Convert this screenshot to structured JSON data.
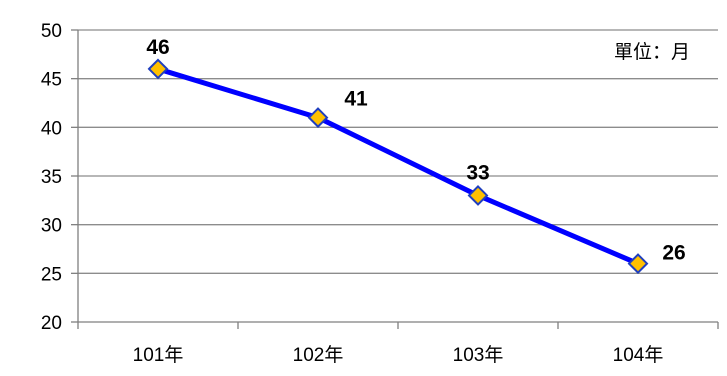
{
  "chart_data": {
    "type": "line",
    "categories": [
      "101年",
      "102年",
      "103年",
      "104年"
    ],
    "series": [
      {
        "values": [
          46,
          41,
          33,
          26
        ]
      }
    ],
    "data_labels": [
      "46",
      "41",
      "33",
      "26"
    ],
    "y_ticks": [
      "20",
      "25",
      "30",
      "35",
      "40",
      "45",
      "50"
    ],
    "ylim": [
      20,
      50
    ],
    "y_step": 5,
    "unit_note": "單位：月",
    "grid": true,
    "legend": "none",
    "line_color": "#0000FF",
    "marker": "diamond",
    "marker_fill": "#FFC000",
    "marker_stroke": "#1F3FBF",
    "gridline_color": "#8C8C8C"
  }
}
